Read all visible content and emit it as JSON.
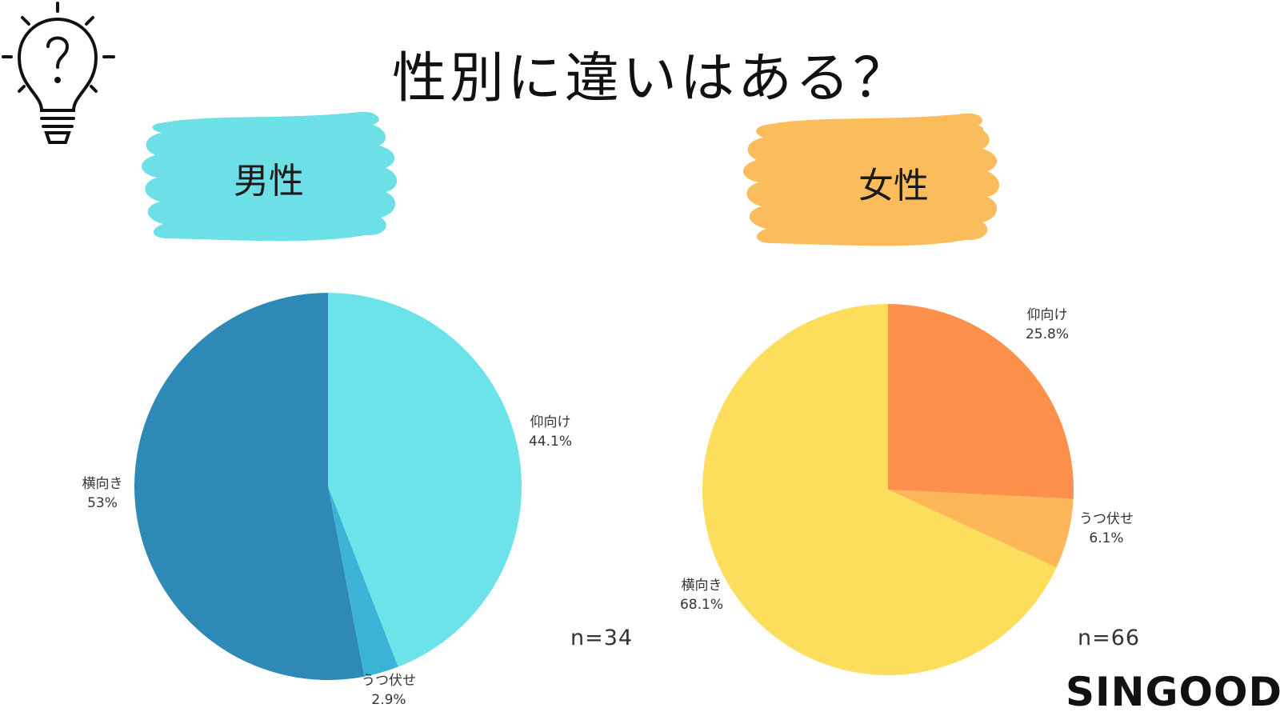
{
  "title": "性別に違いはある？",
  "brand": "SINGOOD",
  "icons": {
    "bulb": "question-lightbulb-icon"
  },
  "colors": {
    "male_blob": "#6CE0E6",
    "female_blob": "#FBBD5C"
  },
  "chart_data": [
    {
      "type": "pie",
      "group_label": "男性",
      "sample_size": "n=34",
      "slices": [
        {
          "label": "仰向け",
          "value": 44.1,
          "value_text": "44.1%",
          "color": "#6CE3E8"
        },
        {
          "label": "うつ伏せ",
          "value": 2.9,
          "value_text": "2.9%",
          "color": "#3BB3D6"
        },
        {
          "label": "横向き",
          "value": 53,
          "value_text": "53%",
          "color": "#2E89B6"
        }
      ]
    },
    {
      "type": "pie",
      "group_label": "女性",
      "sample_size": "n=66",
      "slices": [
        {
          "label": "仰向け",
          "value": 25.8,
          "value_text": "25.8%",
          "color": "#FD914C"
        },
        {
          "label": "うつ伏せ",
          "value": 6.1,
          "value_text": "6.1%",
          "color": "#FDB759"
        },
        {
          "label": "横向き",
          "value": 68.1,
          "value_text": "68.1%",
          "color": "#FDDE5C"
        }
      ]
    }
  ]
}
